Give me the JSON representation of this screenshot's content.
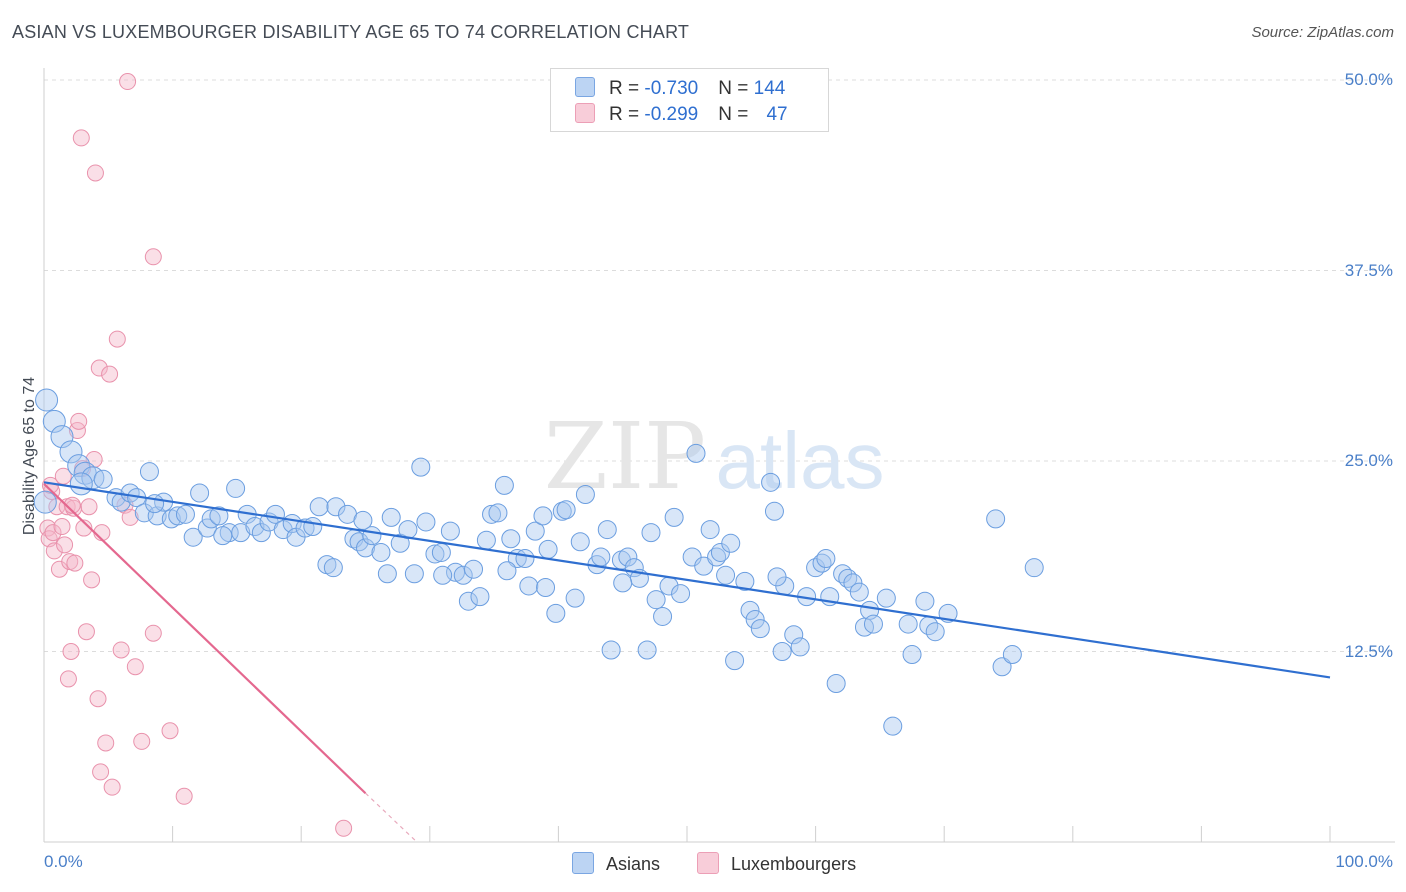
{
  "chart_data": {
    "type": "scatter",
    "title": "ASIAN VS LUXEMBOURGER DISABILITY AGE 65 TO 74 CORRELATION CHART",
    "source": "Source: ZipAtlas.com",
    "xlabel": "",
    "ylabel": "Disability Age 65 to 74",
    "xlim": [
      0,
      100
    ],
    "ylim": [
      0,
      50
    ],
    "x_tick_labels": [
      "0.0%",
      "100.0%"
    ],
    "y_tick_values": [
      12.5,
      25.0,
      37.5,
      50.0
    ],
    "y_tick_labels": [
      "12.5%",
      "25.0%",
      "37.5%",
      "50.0%"
    ],
    "grid": true,
    "legend_position": "top-center",
    "watermark": "ZIPatlas",
    "legend": [
      {
        "r_label": "R = ",
        "r_value": "-0.730",
        "n_label": "N = ",
        "n_value": "144"
      },
      {
        "r_label": "R = ",
        "r_value": "-0.299",
        "n_label": "N = ",
        "n_value": "47"
      }
    ],
    "series": [
      {
        "name": "Asians",
        "color": "#a9c8f0",
        "stroke": "#6b9ee0",
        "line_color": "#2f6fd0",
        "trend": {
          "x0": 0,
          "y0": 23.6,
          "x1": 100,
          "y1": 10.8
        },
        "points": [
          [
            0.2,
            29.0
          ],
          [
            0.8,
            27.6
          ],
          [
            1.4,
            26.6
          ],
          [
            2.1,
            25.6
          ],
          [
            2.7,
            24.7
          ],
          [
            3.2,
            24.2
          ],
          [
            3.8,
            23.9
          ],
          [
            4.6,
            23.8
          ],
          [
            5.6,
            22.6
          ],
          [
            6.0,
            22.3
          ],
          [
            6.7,
            22.9
          ],
          [
            7.2,
            22.6
          ],
          [
            7.8,
            21.6
          ],
          [
            8.2,
            24.3
          ],
          [
            8.8,
            21.4
          ],
          [
            9.3,
            22.3
          ],
          [
            9.9,
            21.2
          ],
          [
            10.4,
            21.4
          ],
          [
            11.0,
            21.5
          ],
          [
            11.6,
            20.0
          ],
          [
            12.1,
            22.9
          ],
          [
            12.7,
            20.6
          ],
          [
            13.0,
            21.2
          ],
          [
            13.6,
            21.4
          ],
          [
            14.4,
            20.3
          ],
          [
            14.9,
            23.2
          ],
          [
            15.3,
            20.3
          ],
          [
            15.8,
            21.5
          ],
          [
            16.4,
            20.7
          ],
          [
            16.9,
            20.3
          ],
          [
            17.5,
            21.0
          ],
          [
            18.0,
            21.5
          ],
          [
            18.6,
            20.5
          ],
          [
            19.3,
            20.9
          ],
          [
            19.6,
            20.0
          ],
          [
            20.3,
            20.6
          ],
          [
            20.9,
            20.7
          ],
          [
            21.4,
            22.0
          ],
          [
            22.0,
            18.2
          ],
          [
            22.5,
            18.0
          ],
          [
            22.7,
            22.0
          ],
          [
            23.6,
            21.5
          ],
          [
            24.1,
            19.9
          ],
          [
            24.5,
            19.7
          ],
          [
            25.0,
            19.3
          ],
          [
            25.5,
            20.1
          ],
          [
            26.2,
            19.0
          ],
          [
            26.7,
            17.6
          ],
          [
            27.0,
            21.3
          ],
          [
            27.7,
            19.6
          ],
          [
            28.3,
            20.5
          ],
          [
            28.8,
            17.6
          ],
          [
            29.3,
            24.6
          ],
          [
            29.7,
            21.0
          ],
          [
            30.4,
            18.9
          ],
          [
            30.9,
            19.0
          ],
          [
            31.6,
            20.4
          ],
          [
            32.0,
            17.7
          ],
          [
            32.6,
            17.5
          ],
          [
            33.0,
            15.8
          ],
          [
            33.4,
            17.9
          ],
          [
            33.9,
            16.1
          ],
          [
            34.4,
            19.8
          ],
          [
            34.8,
            21.5
          ],
          [
            35.3,
            21.6
          ],
          [
            35.8,
            23.4
          ],
          [
            36.3,
            19.9
          ],
          [
            36.8,
            18.6
          ],
          [
            37.4,
            18.6
          ],
          [
            37.7,
            16.8
          ],
          [
            38.2,
            20.4
          ],
          [
            38.8,
            21.4
          ],
          [
            39.2,
            19.2
          ],
          [
            39.8,
            15.0
          ],
          [
            40.3,
            21.7
          ],
          [
            40.6,
            21.8
          ],
          [
            41.3,
            16.0
          ],
          [
            41.7,
            19.7
          ],
          [
            42.1,
            22.8
          ],
          [
            43.0,
            18.2
          ],
          [
            43.3,
            18.7
          ],
          [
            43.8,
            20.5
          ],
          [
            44.1,
            12.6
          ],
          [
            44.9,
            18.5
          ],
          [
            45.4,
            18.7
          ],
          [
            45.9,
            18.0
          ],
          [
            46.3,
            17.3
          ],
          [
            46.9,
            12.6
          ],
          [
            47.2,
            20.3
          ],
          [
            47.6,
            15.9
          ],
          [
            48.1,
            14.8
          ],
          [
            48.6,
            16.8
          ],
          [
            49.0,
            21.3
          ],
          [
            49.5,
            16.3
          ],
          [
            50.4,
            18.7
          ],
          [
            50.7,
            25.5
          ],
          [
            51.3,
            18.1
          ],
          [
            51.8,
            20.5
          ],
          [
            52.3,
            18.7
          ],
          [
            52.6,
            19.0
          ],
          [
            53.4,
            19.6
          ],
          [
            53.7,
            11.9
          ],
          [
            54.5,
            17.1
          ],
          [
            54.9,
            15.2
          ],
          [
            55.3,
            14.6
          ],
          [
            55.7,
            14.0
          ],
          [
            56.5,
            23.6
          ],
          [
            56.8,
            21.7
          ],
          [
            57.4,
            12.5
          ],
          [
            57.6,
            16.8
          ],
          [
            58.3,
            13.6
          ],
          [
            58.8,
            12.8
          ],
          [
            59.3,
            16.1
          ],
          [
            60.0,
            18.0
          ],
          [
            60.5,
            18.3
          ],
          [
            61.1,
            16.1
          ],
          [
            61.6,
            10.4
          ],
          [
            62.1,
            17.6
          ],
          [
            62.5,
            17.3
          ],
          [
            62.9,
            17.0
          ],
          [
            63.4,
            16.4
          ],
          [
            63.8,
            14.1
          ],
          [
            64.2,
            15.2
          ],
          [
            64.5,
            14.3
          ],
          [
            66.0,
            7.6
          ],
          [
            67.2,
            14.3
          ],
          [
            67.5,
            12.3
          ],
          [
            68.5,
            15.8
          ],
          [
            68.8,
            14.2
          ],
          [
            69.3,
            13.8
          ],
          [
            70.3,
            15.0
          ],
          [
            74.0,
            21.2
          ],
          [
            74.5,
            11.5
          ],
          [
            75.3,
            12.3
          ],
          [
            77.0,
            18.0
          ],
          [
            0.1,
            22.3
          ],
          [
            2.9,
            23.5
          ],
          [
            8.6,
            22.2
          ],
          [
            13.9,
            20.1
          ],
          [
            24.8,
            21.1
          ],
          [
            31.0,
            17.5
          ],
          [
            36.0,
            17.8
          ],
          [
            39.0,
            16.7
          ],
          [
            45.0,
            17.0
          ],
          [
            53.0,
            17.5
          ],
          [
            57.0,
            17.4
          ],
          [
            60.8,
            18.6
          ],
          [
            65.5,
            16.0
          ]
        ]
      },
      {
        "name": "Luxembourgers",
        "color": "#f5b8c9",
        "stroke": "#e992ac",
        "line_color": "#e4688f",
        "trend": {
          "x0": 0,
          "y0": 23.5,
          "x1": 25,
          "y1": 3.2
        },
        "trend_dashed_to": {
          "x1": 29,
          "y1": 0.0
        },
        "points": [
          [
            0.3,
            20.6
          ],
          [
            0.4,
            19.9
          ],
          [
            0.6,
            23.0
          ],
          [
            0.7,
            20.3
          ],
          [
            0.8,
            19.1
          ],
          [
            1.0,
            22.0
          ],
          [
            1.2,
            17.9
          ],
          [
            1.4,
            20.7
          ],
          [
            1.6,
            19.5
          ],
          [
            1.8,
            22.0
          ],
          [
            1.9,
            10.7
          ],
          [
            2.0,
            18.4
          ],
          [
            2.1,
            12.5
          ],
          [
            2.3,
            21.9
          ],
          [
            2.4,
            18.3
          ],
          [
            2.6,
            27.0
          ],
          [
            2.7,
            27.6
          ],
          [
            3.1,
            20.6
          ],
          [
            3.3,
            13.8
          ],
          [
            3.5,
            22.0
          ],
          [
            3.7,
            17.2
          ],
          [
            3.9,
            25.1
          ],
          [
            4.2,
            9.4
          ],
          [
            4.3,
            31.1
          ],
          [
            4.5,
            20.3
          ],
          [
            4.8,
            6.5
          ],
          [
            5.1,
            30.7
          ],
          [
            5.3,
            3.6
          ],
          [
            5.7,
            33.0
          ],
          [
            6.0,
            12.6
          ],
          [
            6.3,
            22.1
          ],
          [
            6.7,
            21.3
          ],
          [
            7.1,
            11.5
          ],
          [
            7.6,
            6.6
          ],
          [
            8.5,
            13.7
          ],
          [
            9.8,
            7.3
          ],
          [
            10.9,
            3.0
          ],
          [
            23.3,
            0.9
          ],
          [
            6.5,
            49.9
          ],
          [
            2.9,
            46.2
          ],
          [
            4.0,
            43.9
          ],
          [
            8.5,
            38.4
          ],
          [
            0.5,
            23.4
          ],
          [
            1.5,
            24.0
          ],
          [
            2.2,
            22.1
          ],
          [
            3.0,
            24.5
          ],
          [
            4.4,
            4.6
          ]
        ]
      }
    ]
  },
  "legend_bottom": {
    "asians": "Asians",
    "luxembourgers": "Luxembourgers"
  }
}
